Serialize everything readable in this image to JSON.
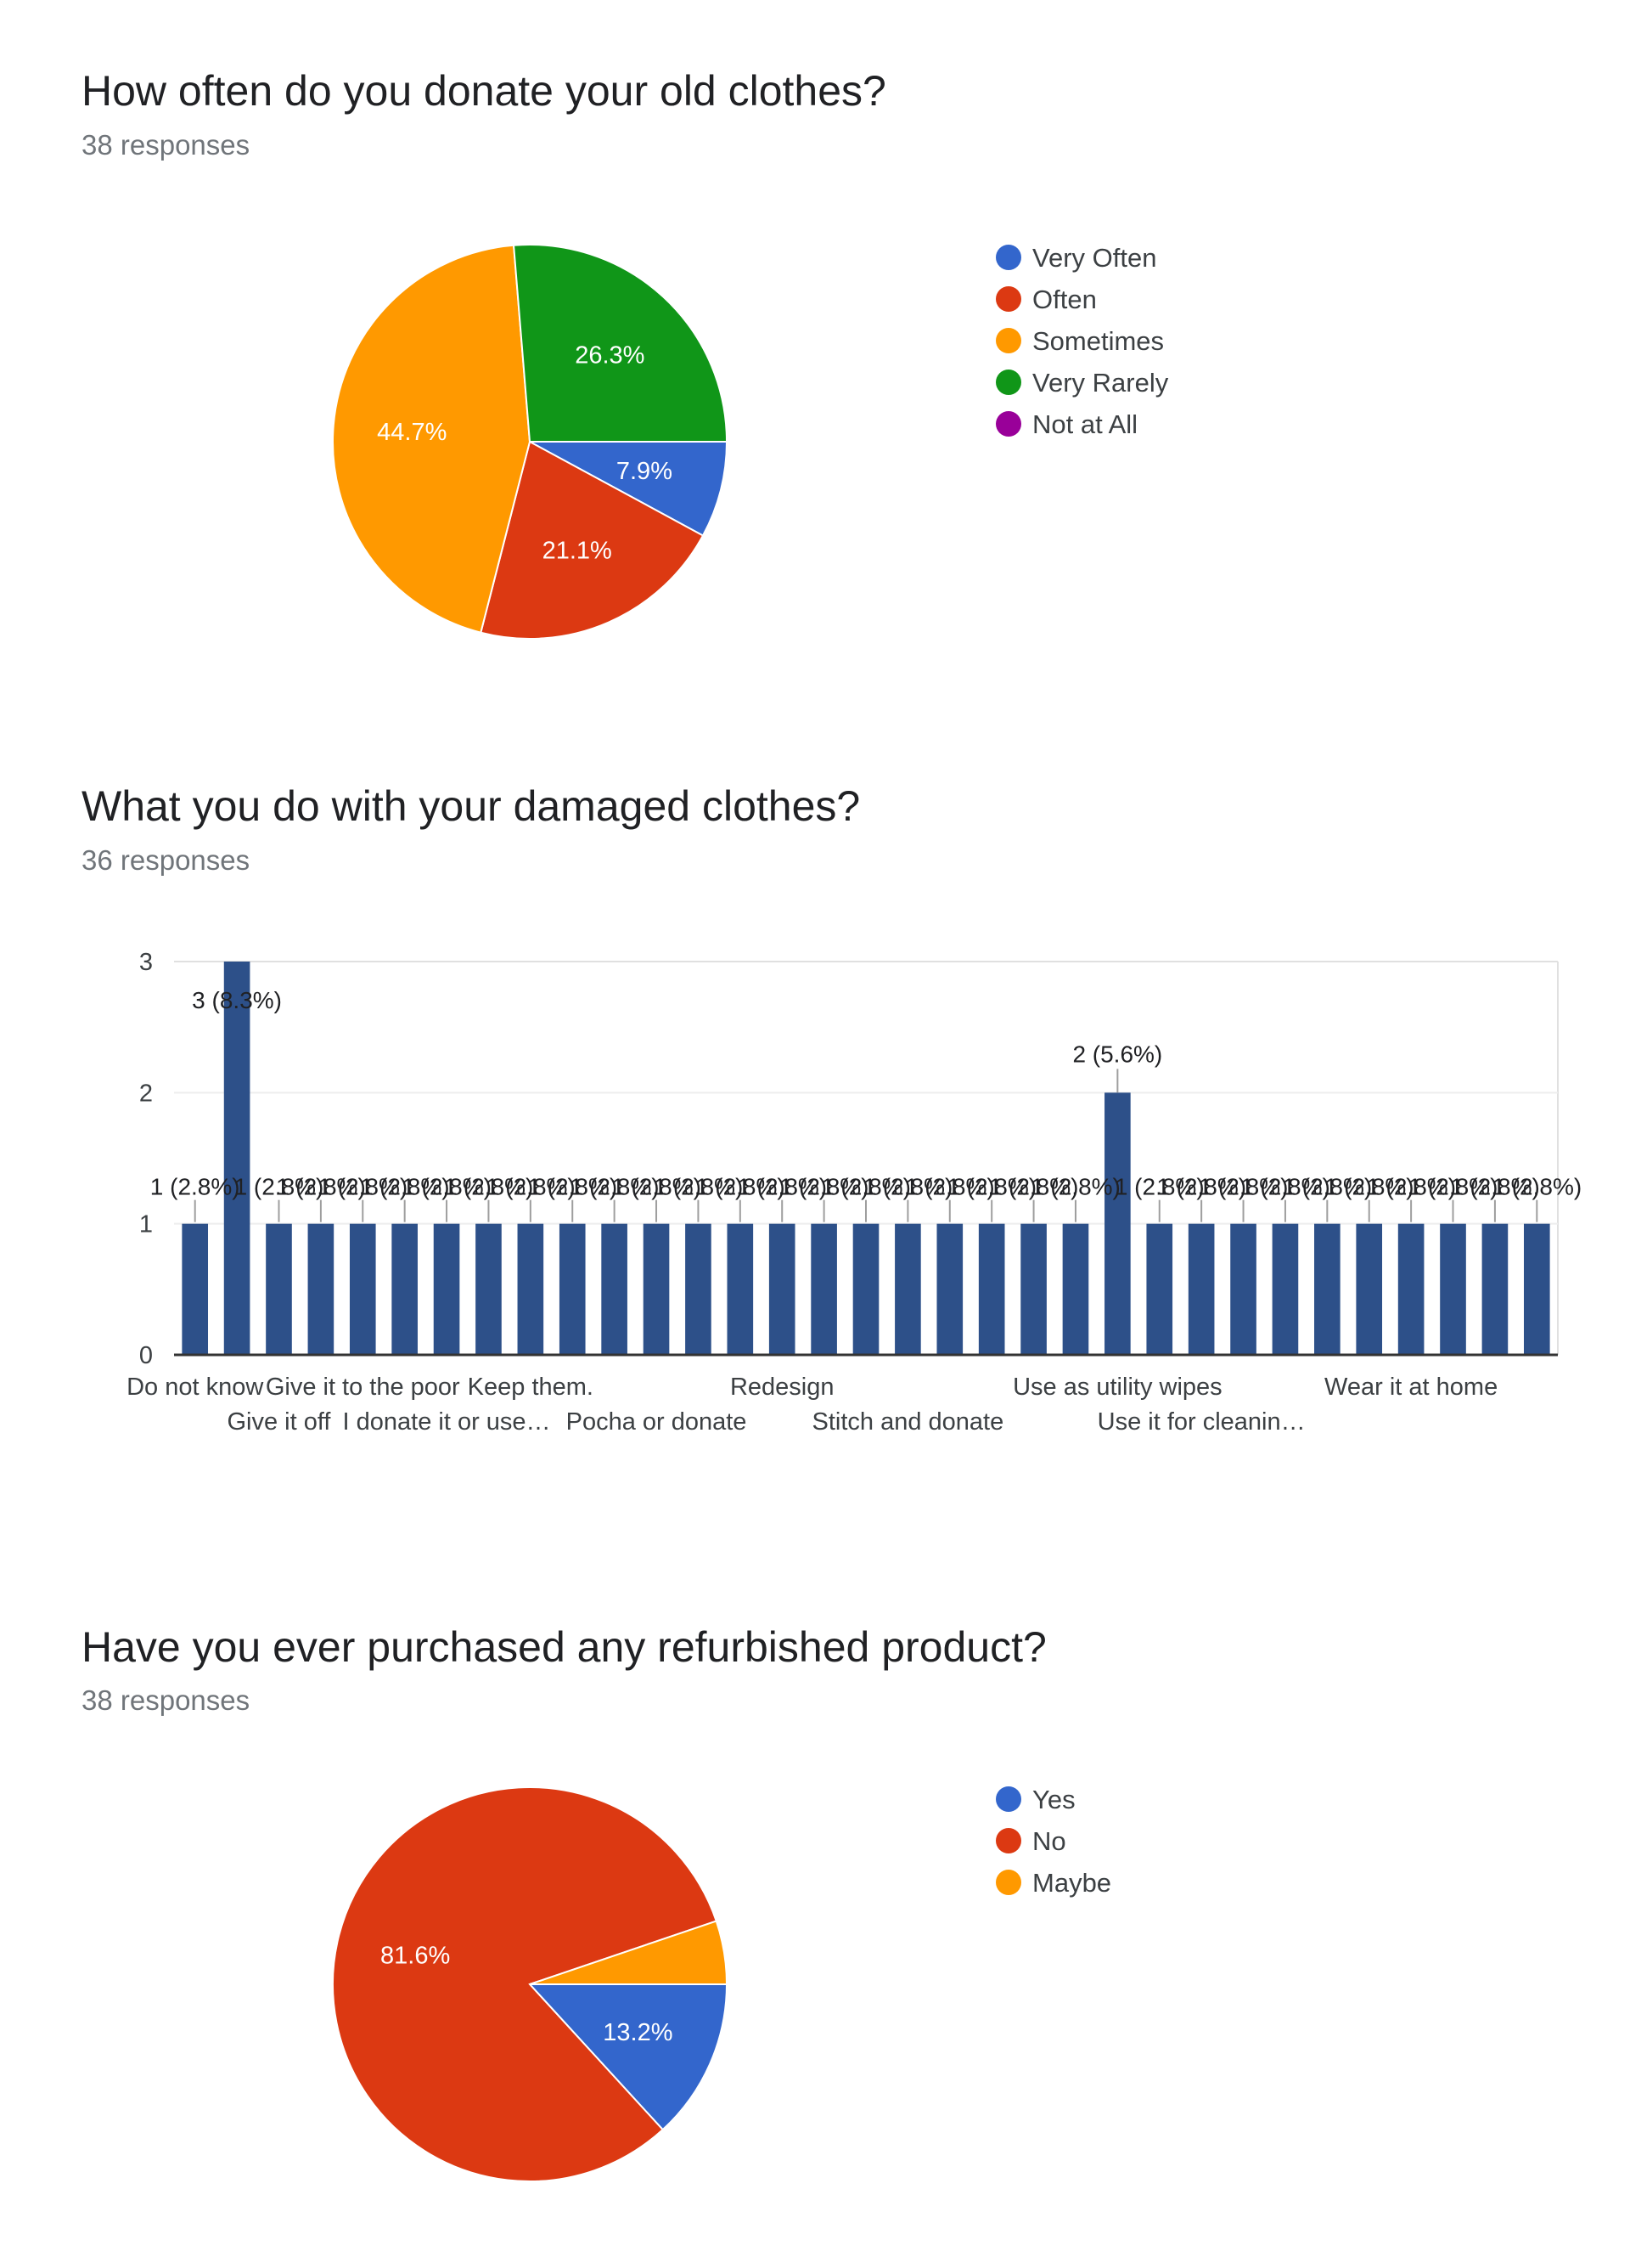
{
  "chart_data": [
    {
      "type": "pie",
      "title": "How often do you donate your old clothes?",
      "subtitle": "38 responses",
      "categories": [
        "Very Often",
        "Often",
        "Sometimes",
        "Very Rarely",
        "Not at All"
      ],
      "values": [
        7.9,
        21.1,
        44.7,
        26.3,
        0
      ],
      "labels": [
        "7.9%",
        "21.1%",
        "44.7%",
        "26.3%",
        ""
      ],
      "colors": [
        "#3366cc",
        "#dc3912",
        "#ff9900",
        "#109618",
        "#990099"
      ],
      "legend": "right"
    },
    {
      "type": "bar",
      "title": "What you do with your damaged clothes?",
      "subtitle": "36 responses",
      "categories": [
        "Do not know",
        "",
        "Give it off",
        "",
        "Give it to the poor",
        "",
        "I donate it or use…",
        "",
        "Keep them.",
        "",
        "",
        "Pocha or donate",
        "",
        "",
        "Redesign",
        "",
        "",
        "Stitch and donate",
        "",
        "",
        "",
        "",
        "Use as utility wipes",
        "",
        "Use it for cleanin…",
        "",
        "",
        "",
        "",
        "Wear it at home",
        "",
        "",
        ""
      ],
      "values": [
        1,
        3,
        1,
        1,
        1,
        1,
        1,
        1,
        1,
        1,
        1,
        1,
        1,
        1,
        1,
        1,
        1,
        1,
        1,
        1,
        1,
        1,
        2,
        1,
        1,
        1,
        1,
        1,
        1,
        1,
        1,
        1,
        1
      ],
      "bar_label_texts": {
        "v1": "1 (2.8%)",
        "v2": "2 (5.6%)",
        "v3": "3 (8.3%)"
      },
      "yticks": [
        "0",
        "1",
        "2",
        "3"
      ],
      "ylim": [
        0,
        3
      ],
      "color": "#2d5089",
      "grid": true
    },
    {
      "type": "pie",
      "title": "Have you ever purchased any refurbished product?",
      "subtitle": "38 responses",
      "categories": [
        "Yes",
        "No",
        "Maybe"
      ],
      "values": [
        13.2,
        81.6,
        5.2
      ],
      "labels": [
        "13.2%",
        "81.6%",
        ""
      ],
      "colors": [
        "#3366cc",
        "#dc3912",
        "#ff9900"
      ],
      "legend": "right"
    }
  ]
}
